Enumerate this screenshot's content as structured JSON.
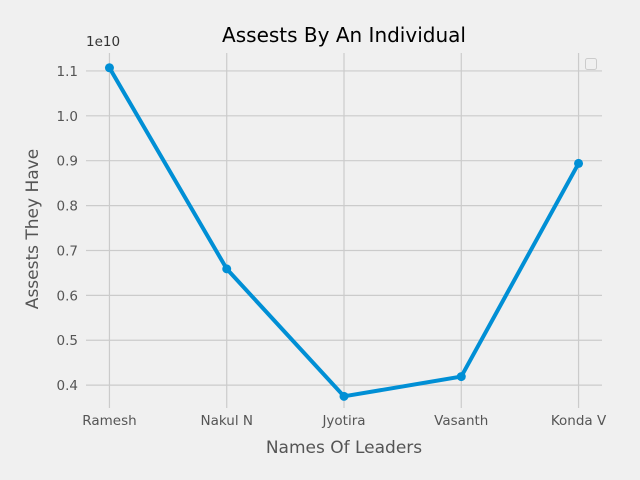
{
  "chart_data": {
    "type": "line",
    "title": "Assests By An Individual",
    "xlabel": "Names Of Leaders",
    "ylabel": "Assests They Have",
    "y_offset_label": "1e10",
    "categories": [
      "Ramesh",
      "Nakul N",
      "Jyotira",
      "Vasanth",
      "Konda V"
    ],
    "series": [
      {
        "values": [
          1.107,
          0.659,
          0.375,
          0.419,
          0.894
        ],
        "color": "#008fd5"
      }
    ],
    "yticks": [
      0.4,
      0.5,
      0.6,
      0.7,
      0.8,
      0.9,
      1.0,
      1.1
    ],
    "ytick_labels": [
      "0.4",
      "0.5",
      "0.6",
      "0.7",
      "0.8",
      "0.9",
      "1.0",
      "1.1"
    ],
    "ylim": [
      0.349,
      1.14
    ],
    "grid": true,
    "legend": "top-right (empty)",
    "style": {
      "background": "#f0f0f0",
      "grid_color": "#cbcbcb"
    }
  }
}
